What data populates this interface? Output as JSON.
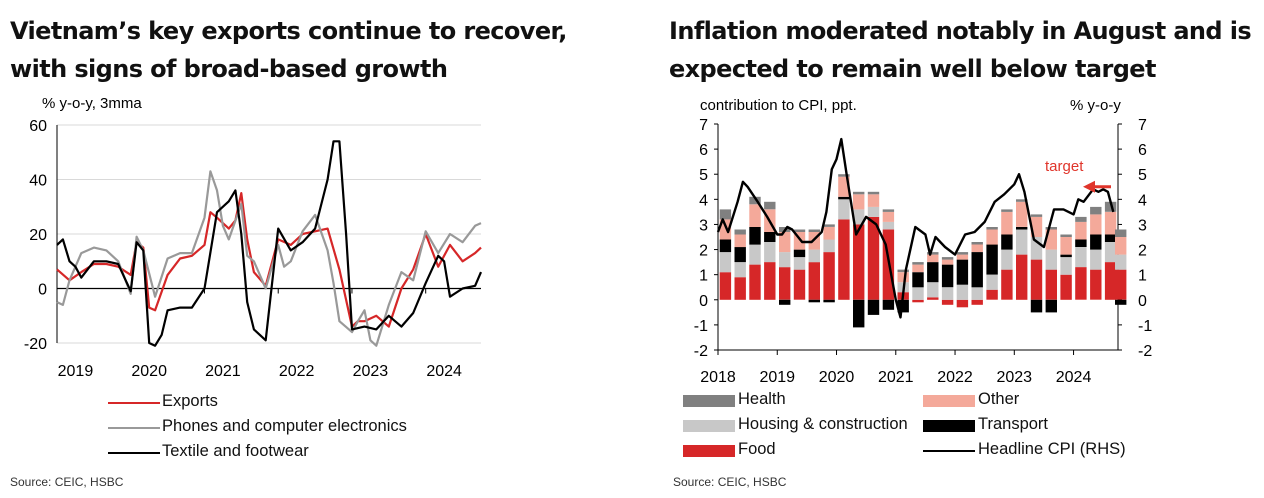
{
  "left": {
    "title": "Vietnam’s key exports continue to recover, with signs of broad-based growth",
    "source": "Source: CEIC, HSBC",
    "colors": {
      "Exports": "#d62728",
      "Phones and computer electronics": "#999999",
      "Textile and footwear": "#000000"
    }
  },
  "right": {
    "title": "Inflation moderated notably in August and is expected to remain well below target",
    "source": "Source: CEIC, HSBC",
    "target_label": "target",
    "colors": {
      "Health": "#808080",
      "Other": "#f4a99a",
      "Housing & construction": "#c8c8c8",
      "Transport": "#000000",
      "Food": "#d62728",
      "Headline CPI (RHS)": "#000000",
      "target": "#e0352b"
    }
  },
  "chart_data": [
    {
      "type": "line",
      "ylabel": "% y-o-y, 3mma",
      "ylim": [
        -20,
        60
      ],
      "yticks": [
        -20,
        0,
        20,
        40,
        60
      ],
      "xlim": [
        2019,
        2024.75
      ],
      "xticks": [
        "2019",
        "2020",
        "2021",
        "2022",
        "2023",
        "2024"
      ],
      "grid": true,
      "legend_position": "bottom",
      "series": [
        {
          "name": "Exports",
          "x": [
            2019.0,
            2019.17,
            2019.33,
            2019.5,
            2019.67,
            2019.83,
            2020.0,
            2020.08,
            2020.17,
            2020.25,
            2020.33,
            2020.5,
            2020.67,
            2020.83,
            2021.0,
            2021.08,
            2021.17,
            2021.33,
            2021.42,
            2021.5,
            2021.58,
            2021.67,
            2021.83,
            2022.0,
            2022.17,
            2022.33,
            2022.5,
            2022.67,
            2022.83,
            2023.0,
            2023.08,
            2023.17,
            2023.33,
            2023.5,
            2023.67,
            2023.83,
            2024.0,
            2024.17,
            2024.33,
            2024.5,
            2024.67,
            2024.75
          ],
          "y": [
            7,
            3,
            6,
            9,
            9,
            8,
            5,
            17,
            15,
            -7,
            -8,
            5,
            11,
            12,
            16,
            28,
            26,
            22,
            25,
            35,
            18,
            6,
            1,
            18,
            16,
            20,
            21,
            22,
            7,
            -14,
            -12,
            -12,
            -10,
            -14,
            0,
            7,
            20,
            8,
            16,
            10,
            13,
            15
          ]
        },
        {
          "name": "Phones and computer electronics",
          "x": [
            2019.0,
            2019.08,
            2019.17,
            2019.33,
            2019.5,
            2019.67,
            2019.83,
            2020.0,
            2020.08,
            2020.17,
            2020.33,
            2020.5,
            2020.67,
            2020.83,
            2021.0,
            2021.08,
            2021.17,
            2021.25,
            2021.33,
            2021.5,
            2021.58,
            2021.67,
            2021.83,
            2022.0,
            2022.08,
            2022.17,
            2022.33,
            2022.5,
            2022.67,
            2022.75,
            2022.83,
            2023.0,
            2023.08,
            2023.17,
            2023.25,
            2023.33,
            2023.5,
            2023.67,
            2023.83,
            2024.0,
            2024.17,
            2024.33,
            2024.5,
            2024.67,
            2024.75
          ],
          "y": [
            -5,
            -6,
            3,
            13,
            15,
            14,
            10,
            -2,
            19,
            14,
            -3,
            11,
            13,
            13,
            26,
            43,
            36,
            23,
            18,
            31,
            12,
            10,
            0,
            16,
            8,
            10,
            21,
            27,
            14,
            2,
            -12,
            -16,
            -12,
            -8,
            -19,
            -21,
            -6,
            6,
            3,
            21,
            13,
            20,
            17,
            23,
            24
          ]
        },
        {
          "name": "Textile and footwear",
          "x": [
            2019.0,
            2019.08,
            2019.17,
            2019.25,
            2019.33,
            2019.5,
            2019.67,
            2019.83,
            2020.0,
            2020.08,
            2020.17,
            2020.25,
            2020.33,
            2020.42,
            2020.5,
            2020.67,
            2020.83,
            2021.0,
            2021.17,
            2021.33,
            2021.42,
            2021.5,
            2021.58,
            2021.67,
            2021.83,
            2022.0,
            2022.17,
            2022.33,
            2022.5,
            2022.67,
            2022.75,
            2022.83,
            2022.92,
            2023.0,
            2023.17,
            2023.33,
            2023.5,
            2023.67,
            2023.83,
            2024.0,
            2024.17,
            2024.25,
            2024.33,
            2024.5,
            2024.67,
            2024.75
          ],
          "y": [
            16,
            18,
            10,
            8,
            4,
            10,
            10,
            9,
            -1,
            17,
            14,
            -20,
            -21,
            -17,
            -8,
            -7,
            -7,
            0,
            28,
            32,
            36,
            20,
            -5,
            -15,
            -19,
            22,
            14,
            17,
            22,
            40,
            54,
            54,
            20,
            -15,
            -14,
            -15,
            -10,
            -14,
            -9,
            2,
            12,
            10,
            -3,
            0,
            1,
            6
          ]
        }
      ]
    },
    {
      "type": "bar",
      "stacked": true,
      "ylabel_left": "contribution to CPI, ppt.",
      "ylabel_right": "% y-o-y",
      "ylim": [
        -2,
        7
      ],
      "yticks": [
        -2,
        -1,
        0,
        1,
        2,
        3,
        4,
        5,
        6,
        7
      ],
      "xlim": [
        2018,
        2024.75
      ],
      "xticks": [
        "2018",
        "2019",
        "2020",
        "2021",
        "2022",
        "2023",
        "2024"
      ],
      "legend_position": "bottom",
      "annotations": [
        {
          "text": "target",
          "value": 4.5
        }
      ],
      "x": [
        2018.0,
        2018.25,
        2018.5,
        2018.75,
        2019.0,
        2019.25,
        2019.5,
        2019.75,
        2020.0,
        2020.25,
        2020.5,
        2020.75,
        2021.0,
        2021.25,
        2021.5,
        2021.75,
        2022.0,
        2022.25,
        2022.5,
        2022.75,
        2023.0,
        2023.25,
        2023.5,
        2023.75,
        2024.0,
        2024.25,
        2024.5,
        2024.67
      ],
      "series": [
        {
          "name": "Food",
          "values": [
            1.1,
            0.9,
            1.4,
            1.5,
            1.3,
            1.2,
            1.5,
            1.9,
            3.2,
            3.0,
            3.3,
            2.8,
            0.3,
            -0.1,
            0.1,
            -0.2,
            -0.3,
            -0.2,
            0.4,
            1.2,
            1.8,
            1.6,
            1.2,
            1.0,
            1.3,
            1.2,
            1.5,
            1.2
          ]
        },
        {
          "name": "Housing & construction",
          "values": [
            0.8,
            0.6,
            0.8,
            0.8,
            0.6,
            0.5,
            0.5,
            0.5,
            0.8,
            0.6,
            0.4,
            0.3,
            0.4,
            0.5,
            0.6,
            0.5,
            0.6,
            0.5,
            0.6,
            0.8,
            1.0,
            0.9,
            0.8,
            0.7,
            0.8,
            0.8,
            0.8,
            0.6
          ]
        },
        {
          "name": "Transport",
          "values": [
            0.5,
            0.6,
            0.7,
            0.4,
            -0.2,
            0.3,
            -0.1,
            -0.1,
            0.1,
            -1.1,
            -0.6,
            -0.4,
            -0.5,
            0.6,
            0.8,
            0.9,
            1.0,
            1.4,
            1.2,
            0.6,
            0.1,
            -0.5,
            -0.5,
            0.1,
            0.3,
            0.6,
            0.3,
            -0.2
          ]
        },
        {
          "name": "Other",
          "values": [
            0.8,
            0.5,
            0.9,
            0.9,
            0.8,
            0.7,
            0.7,
            0.5,
            0.8,
            0.6,
            0.5,
            0.4,
            0.4,
            0.3,
            0.3,
            0.2,
            0.2,
            0.3,
            0.6,
            0.9,
            1.0,
            0.8,
            0.8,
            0.7,
            0.7,
            0.8,
            0.9,
            0.7
          ]
        },
        {
          "name": "Health",
          "values": [
            0.4,
            0.2,
            0.3,
            0.3,
            0.2,
            0.1,
            0.1,
            0.1,
            0.1,
            0.1,
            0.1,
            0.1,
            0.1,
            0.1,
            0.1,
            0.1,
            0.1,
            0.1,
            0.1,
            0.1,
            0.1,
            0.1,
            0.1,
            0.1,
            0.2,
            0.3,
            0.4,
            0.3
          ]
        }
      ],
      "line": {
        "name": "Headline CPI (RHS)",
        "x": [
          2018.0,
          2018.08,
          2018.17,
          2018.33,
          2018.42,
          2018.5,
          2018.67,
          2018.83,
          2019.0,
          2019.08,
          2019.17,
          2019.25,
          2019.42,
          2019.58,
          2019.75,
          2019.83,
          2019.92,
          2020.0,
          2020.08,
          2020.17,
          2020.33,
          2020.5,
          2020.67,
          2020.83,
          2021.0,
          2021.08,
          2021.17,
          2021.33,
          2021.5,
          2021.58,
          2021.67,
          2021.83,
          2022.0,
          2022.17,
          2022.33,
          2022.5,
          2022.67,
          2022.83,
          2023.0,
          2023.08,
          2023.17,
          2023.33,
          2023.5,
          2023.67,
          2023.83,
          2024.0,
          2024.08,
          2024.17,
          2024.33,
          2024.42,
          2024.5,
          2024.58,
          2024.67
        ],
        "y": [
          2.7,
          3.2,
          2.7,
          3.9,
          4.7,
          4.5,
          3.9,
          3.3,
          2.6,
          2.6,
          2.9,
          2.8,
          2.3,
          2.3,
          2.7,
          3.5,
          5.2,
          5.6,
          6.4,
          5.0,
          2.6,
          3.3,
          3.0,
          2.2,
          0.0,
          -0.7,
          1.2,
          2.9,
          2.6,
          1.8,
          2.5,
          2.1,
          1.8,
          2.6,
          2.7,
          3.1,
          3.9,
          4.2,
          4.6,
          5.0,
          4.3,
          2.4,
          2.1,
          3.6,
          3.6,
          3.4,
          4.0,
          3.9,
          4.4,
          4.3,
          4.4,
          4.3,
          3.5
        ]
      }
    }
  ]
}
